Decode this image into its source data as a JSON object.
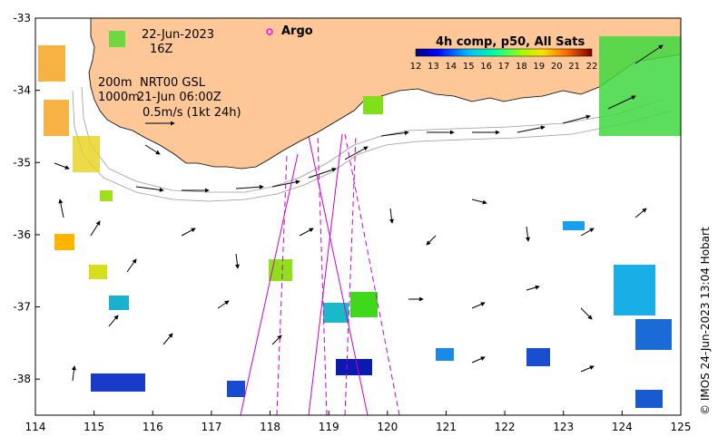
{
  "map": {
    "date": "22-Jun-2023",
    "hour": "16Z",
    "depth_contours": "200m",
    "contour_lower": "1000m",
    "source": "NRT00 GSL",
    "ref_time": "21-Jun 06:00Z",
    "scale_label": "0.5m/s (1kt 24h)",
    "legend_argo": "Argo",
    "colorbar_title": "4h comp, p50, All Sats",
    "colorbar_ticks": [
      "12",
      "13",
      "14",
      "15",
      "16",
      "17",
      "18",
      "19",
      "20",
      "21",
      "22"
    ],
    "colorbar_min": 12,
    "colorbar_max": 22,
    "credit": "© IMOS 24-Jun-2023 13:04 Hobart",
    "x_ticks": [
      "114",
      "115",
      "116",
      "117",
      "118",
      "119",
      "120",
      "121",
      "122",
      "123",
      "124",
      "125"
    ],
    "y_ticks": [
      "-33",
      "-34",
      "-35",
      "-36",
      "-37",
      "-38"
    ],
    "lon_range": [
      114,
      125
    ],
    "lat_range": [
      -38.5,
      -33
    ],
    "colors": {
      "land": "#fdc797",
      "track": "#cc00cc",
      "contour": "#9a9a9a",
      "argo": "#ff00ff"
    }
  }
}
